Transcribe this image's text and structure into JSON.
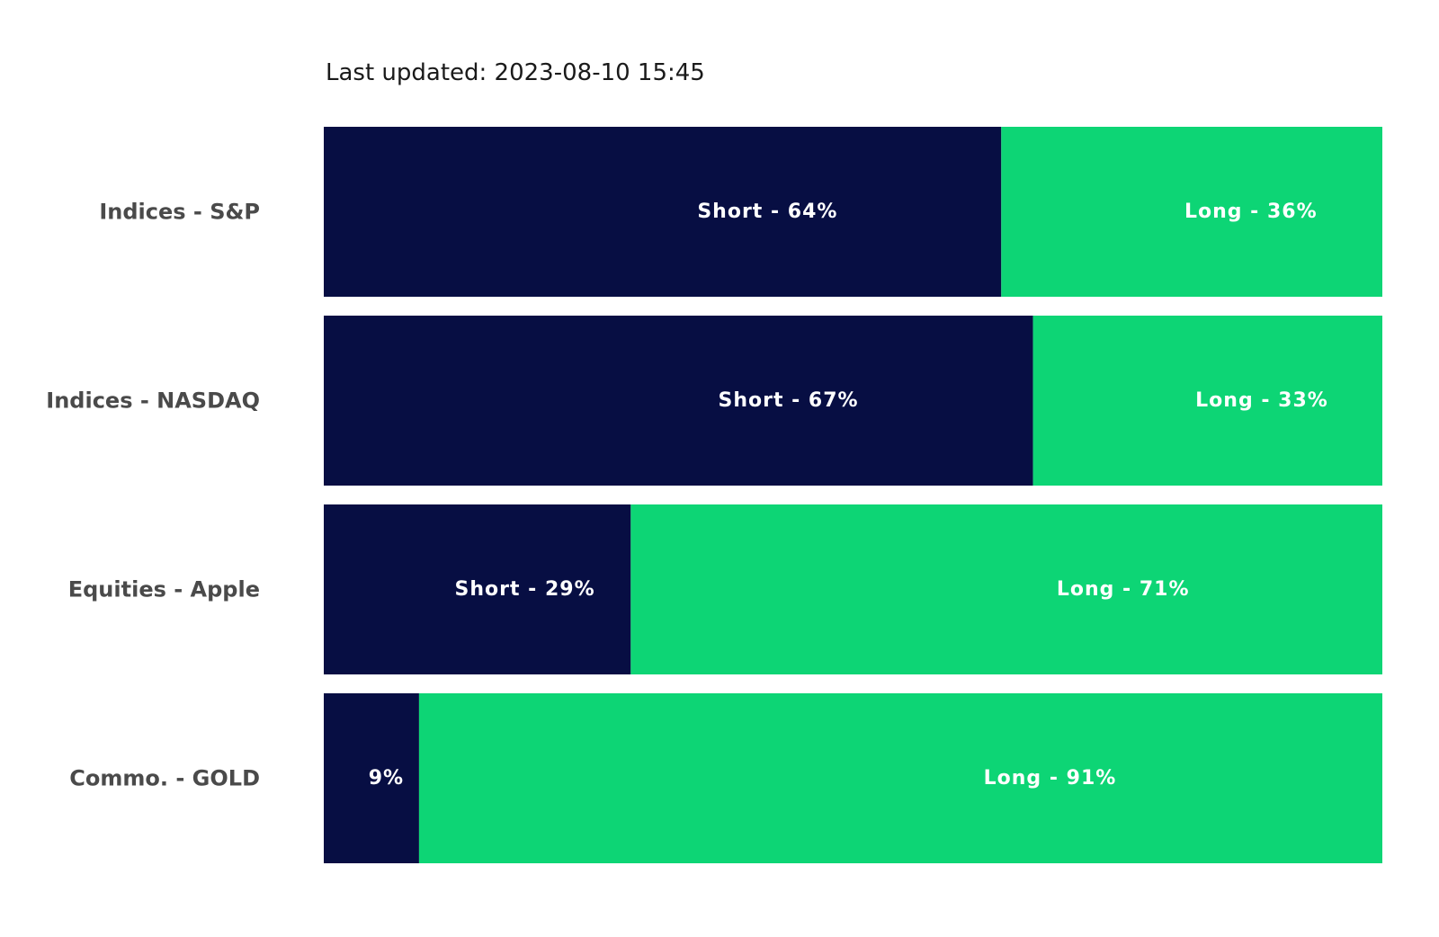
{
  "header": {
    "last_updated": "Last updated: 2023-08-10 15:45"
  },
  "colors": {
    "short": "#070e43",
    "long": "#0dd575"
  },
  "chart_data": {
    "type": "bar",
    "orientation": "horizontal",
    "stacked": true,
    "normalized": true,
    "title": "",
    "xlabel": "",
    "ylabel": "",
    "xlim": [
      0,
      100
    ],
    "grid": false,
    "categories": [
      "Indices - S&P",
      "Indices - NASDAQ",
      "Equities - Apple",
      "Commo. - GOLD"
    ],
    "series": [
      {
        "values": [
          64,
          67,
          29,
          9
        ],
        "labels": [
          "Short - 64%",
          "Short - 67%",
          "Short - 29%",
          "9%"
        ]
      },
      {
        "values": [
          36,
          33,
          71,
          91
        ],
        "labels": [
          "Long - 36%",
          "Long - 33%",
          "Long - 71%",
          "Long - 91%"
        ]
      }
    ]
  }
}
